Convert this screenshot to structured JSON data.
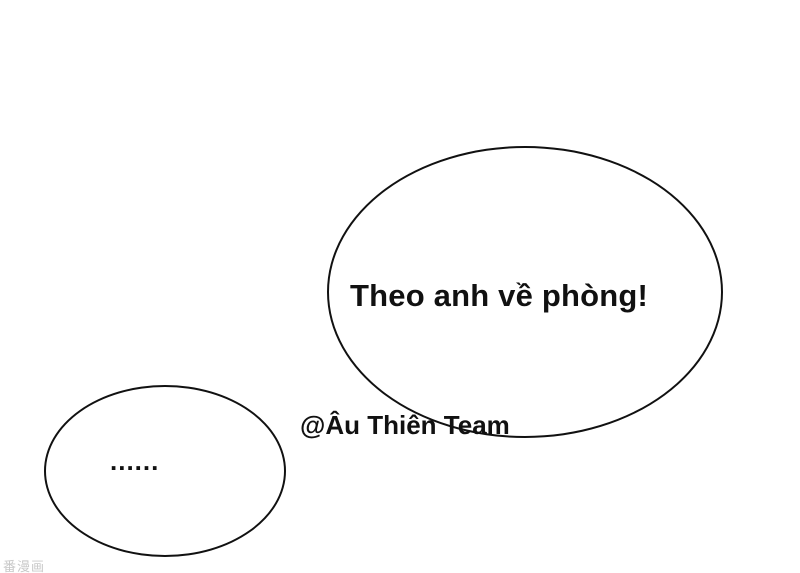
{
  "bubbles": {
    "large": {
      "text": "Theo anh về phòng!"
    },
    "small": {
      "text": "......"
    }
  },
  "watermark": {
    "text": "@Âu Thiên Team"
  },
  "corner_mark": {
    "text": "番漫画"
  },
  "colors": {
    "background": "#ffffff",
    "ink": "#111111",
    "corner_mark": "#c8c8c8"
  }
}
